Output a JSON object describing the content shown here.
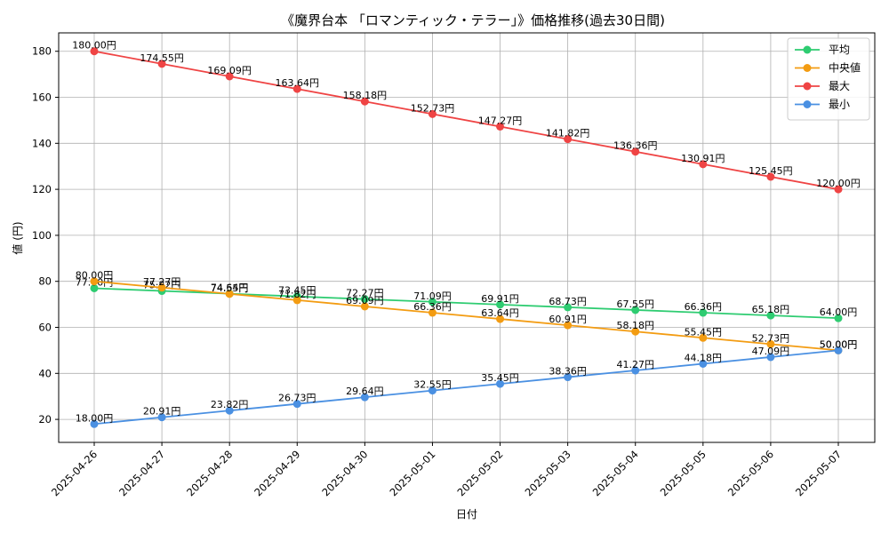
{
  "chart_data": {
    "type": "line",
    "title": "《魔界台本 「ロマンティック・テラー」》価格推移(過去30日間)",
    "xlabel": "日付",
    "ylabel": "値 (円)",
    "ylim": [
      10,
      188
    ],
    "yticks": [
      20,
      40,
      60,
      80,
      100,
      120,
      140,
      160,
      180
    ],
    "grid": true,
    "legend_position": "top-right",
    "value_suffix": "円",
    "categories": [
      "2025-04-26",
      "2025-04-27",
      "2025-04-28",
      "2025-04-29",
      "2025-04-30",
      "2025-05-01",
      "2025-05-02",
      "2025-05-03",
      "2025-05-04",
      "2025-05-05",
      "2025-05-06",
      "2025-05-07"
    ],
    "series": [
      {
        "name": "平均",
        "color": "#2ecc71",
        "values": [
          77.0,
          75.82,
          74.64,
          73.45,
          72.27,
          71.09,
          69.91,
          68.73,
          67.55,
          66.36,
          65.18,
          64.0
        ]
      },
      {
        "name": "中央値",
        "color": "#f39c12",
        "values": [
          80.0,
          77.27,
          74.55,
          71.82,
          69.09,
          66.36,
          63.64,
          60.91,
          58.18,
          55.45,
          52.73,
          50.0
        ]
      },
      {
        "name": "最大",
        "color": "#ef4444",
        "values": [
          180.0,
          174.55,
          169.09,
          163.64,
          158.18,
          152.73,
          147.27,
          141.82,
          136.36,
          130.91,
          125.45,
          120.0
        ]
      },
      {
        "name": "最小",
        "color": "#4a90e2",
        "values": [
          18.0,
          20.91,
          23.82,
          26.73,
          29.64,
          32.55,
          35.45,
          38.36,
          41.27,
          44.18,
          47.09,
          50.0
        ]
      }
    ]
  }
}
